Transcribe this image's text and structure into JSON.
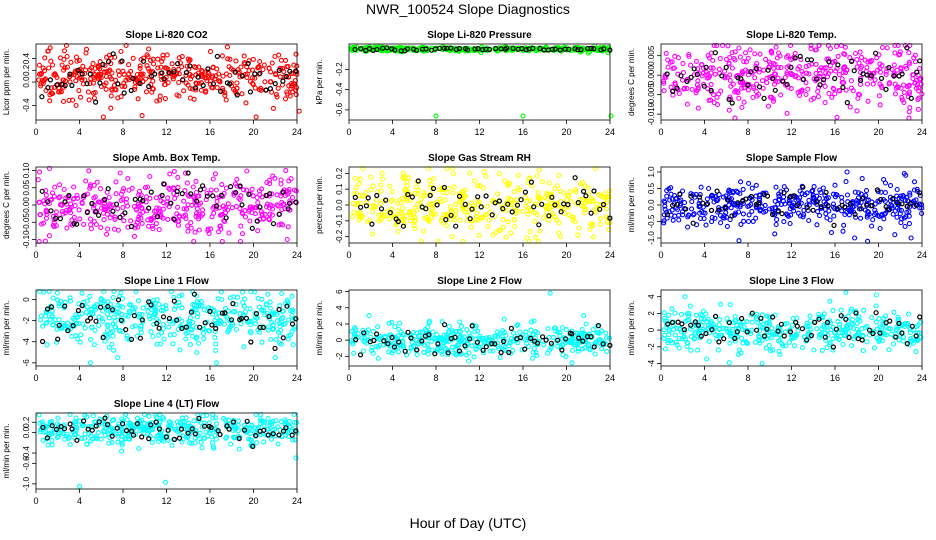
{
  "figure": {
    "title": "NWR_100524  Slope Diagnostics",
    "xlabel": "Hour of Day (UTC)"
  },
  "chart_data": [
    {
      "type": "scatter",
      "title": "Slope Li-820 CO2",
      "ylabel": "Licor ppm per min.",
      "color": "#ff0000",
      "xlim": [
        0,
        24
      ],
      "ylim": [
        -0.65,
        0.65
      ],
      "xticks": [
        0,
        4,
        8,
        12,
        16,
        20,
        24
      ],
      "yticks": [
        -0.4,
        0.0,
        0.2,
        0.4
      ],
      "ytick_labels": [
        "-0.4",
        "0.0",
        "0.2",
        "0.4"
      ],
      "center": 0.1,
      "spread": 0.2,
      "outliers": [
        [
          6.2,
          -0.6
        ],
        [
          17.6,
          0.6
        ],
        [
          24.2,
          -0.5
        ]
      ]
    },
    {
      "type": "scatter",
      "title": "Slope Li-820 Pressure",
      "ylabel": "kPa per min.",
      "color": "#00ff00",
      "xlim": [
        0,
        24
      ],
      "ylim": [
        -0.7,
        0.05
      ],
      "xticks": [
        0,
        4,
        8,
        12,
        16,
        20,
        24
      ],
      "yticks": [
        -0.6,
        -0.4,
        -0.2
      ],
      "ytick_labels": [
        "-0.6",
        "-0.4",
        "-0.2"
      ],
      "center": 0.0,
      "spread": 0.01,
      "outliers": [
        [
          8.0,
          -0.66
        ],
        [
          16.0,
          -0.66
        ],
        [
          24.1,
          -0.66
        ],
        [
          22.0,
          -0.04
        ],
        [
          22.6,
          0.03
        ],
        [
          21.3,
          -0.03
        ]
      ]
    },
    {
      "type": "scatter",
      "title": "Slope Li-820 Temp.",
      "ylabel": "degrees C per min.",
      "color": "#ff00ff",
      "xlim": [
        0,
        24
      ],
      "ylim": [
        -0.0115,
        0.008
      ],
      "xticks": [
        0,
        4,
        8,
        12,
        16,
        20,
        24
      ],
      "yticks": [
        -0.01,
        -0.005,
        0.0,
        0.005
      ],
      "ytick_labels": [
        "-0.010",
        "-0.005",
        "0.000",
        "0.005"
      ],
      "center": 0.0,
      "spread": 0.004,
      "outliers": [
        [
          6.8,
          -0.011
        ],
        [
          11.6,
          -0.0098
        ],
        [
          22.8,
          -0.011
        ],
        [
          20.8,
          0.007
        ],
        [
          22.0,
          0.006
        ]
      ]
    },
    {
      "type": "scatter",
      "title": "Slope Amb. Box Temp.",
      "ylabel": "degrees C per min.",
      "color": "#ff00ff",
      "xlim": [
        0,
        24
      ],
      "ylim": [
        -0.11,
        0.11
      ],
      "xticks": [
        0,
        4,
        8,
        12,
        16,
        20,
        24
      ],
      "yticks": [
        -0.1,
        -0.05,
        0.0,
        0.05,
        0.1
      ],
      "ytick_labels": [
        "-0.10",
        "-0.05",
        "0.00",
        "0.05",
        "0.10"
      ],
      "center": 0.0,
      "spread": 0.045,
      "outliers": [
        [
          12.3,
          0.09
        ],
        [
          16.5,
          0.09
        ],
        [
          23.1,
          -0.1
        ]
      ]
    },
    {
      "type": "scatter",
      "title": "Slope Gas Stream RH",
      "ylabel": "percent per min.",
      "color": "#ffff00",
      "xlim": [
        0,
        24
      ],
      "ylim": [
        -0.24,
        0.24
      ],
      "xticks": [
        0,
        4,
        8,
        12,
        16,
        20,
        24
      ],
      "yticks": [
        -0.2,
        -0.1,
        0.0,
        0.1,
        0.2
      ],
      "ytick_labels": [
        "-0.2",
        "-0.1",
        "0.0",
        "0.1",
        "0.2"
      ],
      "center": 0.0,
      "spread": 0.09,
      "outliers": [
        [
          5.0,
          0.2
        ],
        [
          9.5,
          -0.2
        ],
        [
          17.5,
          0.22
        ]
      ]
    },
    {
      "type": "scatter",
      "title": "Slope Sample Flow",
      "ylabel": "ml/min per min.",
      "color": "#0000ff",
      "xlim": [
        0,
        24
      ],
      "ylim": [
        -1.15,
        1.15
      ],
      "xticks": [
        0,
        4,
        8,
        12,
        16,
        20,
        24
      ],
      "yticks": [
        -1.0,
        -0.5,
        0.0,
        0.5,
        1.0
      ],
      "ytick_labels": [
        "-1.0",
        "-0.5",
        "0.0",
        "0.5",
        "1.0"
      ],
      "center": 0.0,
      "spread": 0.3,
      "outliers": [
        [
          17.1,
          1.0
        ],
        [
          17.8,
          -1.0
        ],
        [
          19.0,
          -1.1
        ],
        [
          21.5,
          -0.9
        ],
        [
          22.5,
          0.9
        ],
        [
          23.0,
          -1.0
        ],
        [
          16.0,
          0.6
        ],
        [
          18.5,
          0.8
        ]
      ]
    },
    {
      "type": "scatter",
      "title": "Slope Line 1 Flow",
      "ylabel": "ml/min per min.",
      "color": "#00ffff",
      "xlim": [
        0,
        24
      ],
      "ylim": [
        -6.3,
        0.9
      ],
      "xticks": [
        0,
        4,
        8,
        12,
        16,
        20,
        24
      ],
      "yticks": [
        -6,
        -4,
        -2,
        0
      ],
      "ytick_labels": [
        "-6",
        "-4",
        "-2",
        "0"
      ],
      "center": -1.8,
      "spread": 1.3,
      "outliers": [
        [
          5.0,
          -6.0
        ],
        [
          16.6,
          -6.0
        ],
        [
          19.0,
          0.7
        ],
        [
          22.0,
          -5.5
        ],
        [
          7.5,
          -5.5
        ]
      ]
    },
    {
      "type": "scatter",
      "title": "Slope Line 2 Flow",
      "ylabel": "ml/min per min.",
      "color": "#00ffff",
      "xlim": [
        0,
        24
      ],
      "ylim": [
        -3.2,
        6.2
      ],
      "xticks": [
        0,
        4,
        8,
        12,
        16,
        20,
        24
      ],
      "yticks": [
        -2,
        0,
        2,
        4,
        6
      ],
      "ytick_labels": [
        "-2",
        "0",
        "2",
        "4",
        "6"
      ],
      "center": 0.0,
      "spread": 1.0,
      "outliers": [
        [
          18.5,
          5.8
        ],
        [
          11.0,
          -2.6
        ],
        [
          20.5,
          -2.8
        ]
      ]
    },
    {
      "type": "scatter",
      "title": "Slope Line 3 Flow",
      "ylabel": "ml/min per min.",
      "color": "#00ffff",
      "xlim": [
        0,
        24
      ],
      "ylim": [
        -4.3,
        4.8
      ],
      "xticks": [
        0,
        4,
        8,
        12,
        16,
        20,
        24
      ],
      "yticks": [
        -4,
        -2,
        0,
        2,
        4
      ],
      "ytick_labels": [
        "-4",
        "-2",
        "0",
        "2",
        "4"
      ],
      "center": 0.0,
      "spread": 1.2,
      "outliers": [
        [
          9.3,
          -4.0
        ],
        [
          17.0,
          4.5
        ],
        [
          19.8,
          4.2
        ],
        [
          2.2,
          4.0
        ]
      ]
    },
    {
      "type": "scatter",
      "title": "Slope Line 4 (LT) Flow",
      "ylabel": "ml/min per min.",
      "color": "#00ffff",
      "xlim": [
        0,
        24
      ],
      "ylim": [
        -1.1,
        0.38
      ],
      "xticks": [
        0,
        4,
        8,
        12,
        16,
        20,
        24
      ],
      "yticks": [
        -1.0,
        -0.6,
        -0.4,
        0.0,
        0.2
      ],
      "ytick_labels": [
        "-1.0",
        "-0.6",
        "-0.4",
        "0.0",
        "0.2"
      ],
      "center": 0.05,
      "spread": 0.15,
      "outliers": [
        [
          4.0,
          -1.05
        ],
        [
          11.9,
          -0.97
        ]
      ]
    }
  ]
}
